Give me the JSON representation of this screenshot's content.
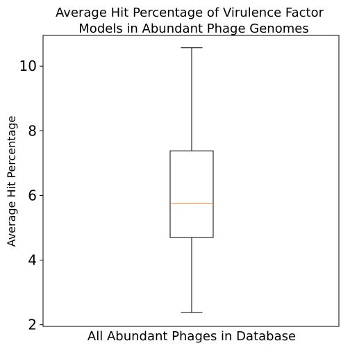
{
  "chart_data": {
    "type": "box",
    "title_lines": [
      "Average Hit Percentage of Virulence Factor",
      "Models in Abundant Phage Genomes"
    ],
    "xlabel": "All Abundant Phages in Database",
    "ylabel": "Average Hit Percentage",
    "ylim": [
      1.95,
      10.95
    ],
    "yticks": [
      2,
      4,
      6,
      8,
      10
    ],
    "grid": false,
    "box": {
      "whisker_low": 2.38,
      "q1": 4.7,
      "median": 5.75,
      "q3": 7.38,
      "whisker_high": 10.57
    },
    "colors": {
      "box": "#000000",
      "median": "#ff7f0e"
    }
  }
}
